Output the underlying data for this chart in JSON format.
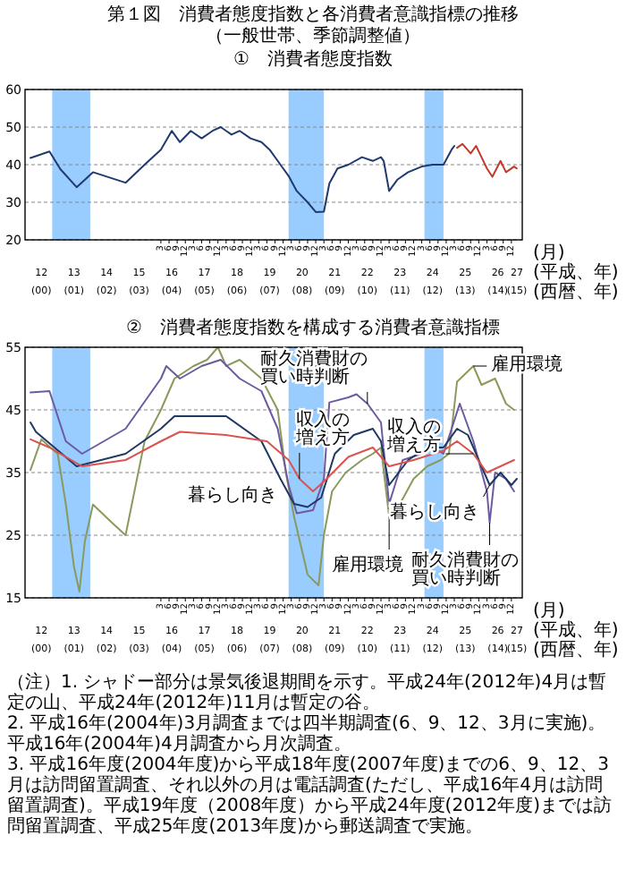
{
  "chart_data": [
    {
      "type": "line",
      "title": "第１図　消費者態度指数と各消費者意識指標の推移（一般世帯、季節調整値）",
      "subtitle": "①　消費者態度指数",
      "xlabel": "(月)",
      "x2label": "(平成、年)\n(西暦、年)",
      "xlim": [
        "2000-01",
        "2015-04"
      ],
      "ylim": [
        20,
        60
      ],
      "yticks": [
        20,
        30,
        40,
        50,
        60
      ],
      "grid": "y",
      "xticks": [
        {
          "value": "2004-03",
          "label": "3"
        },
        {
          "value": "2004-06",
          "label": "6"
        },
        {
          "value": "2004-09",
          "label": "9"
        },
        {
          "value": "2004-12",
          "label": "12"
        },
        {
          "value": "2005-03",
          "label": "3"
        },
        {
          "value": "2005-06",
          "label": "6"
        },
        {
          "value": "2005-09",
          "label": "9"
        },
        {
          "value": "2005-12",
          "label": "12"
        },
        {
          "value": "2006-03",
          "label": "3"
        },
        {
          "value": "2006-06",
          "label": "6"
        },
        {
          "value": "2006-09",
          "label": "9"
        },
        {
          "value": "2006-12",
          "label": "12"
        },
        {
          "value": "2007-03",
          "label": "3"
        },
        {
          "value": "2007-06",
          "label": "6"
        },
        {
          "value": "2007-09",
          "label": "9"
        },
        {
          "value": "2007-12",
          "label": "12"
        },
        {
          "value": "2008-03",
          "label": "3"
        },
        {
          "value": "2008-06",
          "label": "6"
        },
        {
          "value": "2008-09",
          "label": "9"
        },
        {
          "value": "2008-12",
          "label": "12"
        },
        {
          "value": "2009-03",
          "label": "3"
        },
        {
          "value": "2009-06",
          "label": "6"
        },
        {
          "value": "2009-09",
          "label": "9"
        },
        {
          "value": "2009-12",
          "label": "12"
        },
        {
          "value": "2010-03",
          "label": "3"
        },
        {
          "value": "2010-06",
          "label": "6"
        },
        {
          "value": "2010-09",
          "label": "9"
        },
        {
          "value": "2010-12",
          "label": "12"
        },
        {
          "value": "2011-03",
          "label": "3"
        },
        {
          "value": "2011-06",
          "label": "6"
        },
        {
          "value": "2011-09",
          "label": "9"
        },
        {
          "value": "2011-12",
          "label": "12"
        },
        {
          "value": "2012-03",
          "label": "3"
        },
        {
          "value": "2012-06",
          "label": "6"
        },
        {
          "value": "2012-09",
          "label": "9"
        },
        {
          "value": "2012-12",
          "label": "12"
        },
        {
          "value": "2013-03",
          "label": "3"
        },
        {
          "value": "2013-06",
          "label": "6"
        },
        {
          "value": "2013-09",
          "label": "9"
        },
        {
          "value": "2013-12",
          "label": "12"
        },
        {
          "value": "2014-03",
          "label": "3"
        },
        {
          "value": "2014-06",
          "label": "6"
        },
        {
          "value": "2014-09",
          "label": "9"
        },
        {
          "value": "2014-12",
          "label": "12"
        }
      ],
      "x2lim": [
        "2000-01",
        "2015-04"
      ],
      "x2ticks": [
        {
          "value": "2000-07",
          "label": "12\n(00)"
        },
        {
          "value": "2001-07",
          "label": "13\n(01)"
        },
        {
          "value": "2002-07",
          "label": "14\n(02)"
        },
        {
          "value": "2003-07",
          "label": "15\n(03)"
        },
        {
          "value": "2004-07",
          "label": "16\n(04)"
        },
        {
          "value": "2005-07",
          "label": "17\n(05)"
        },
        {
          "value": "2006-07",
          "label": "18\n(06)"
        },
        {
          "value": "2007-07",
          "label": "19\n(07)"
        },
        {
          "value": "2008-07",
          "label": "20\n(08)"
        },
        {
          "value": "2009-07",
          "label": "21\n(09)"
        },
        {
          "value": "2010-07",
          "label": "22\n(10)"
        },
        {
          "value": "2011-07",
          "label": "23\n(11)"
        },
        {
          "value": "2012-07",
          "label": "24\n(12)"
        },
        {
          "value": "2013-07",
          "label": "25\n(13)"
        },
        {
          "value": "2014-07",
          "label": "26\n(14)"
        },
        {
          "value": "2015-02",
          "label": "27\n(15)"
        }
      ],
      "bands": [
        {
          "axis": "x",
          "from": "2000-11",
          "to": "2002-01",
          "color": "#99ccff"
        },
        {
          "axis": "x",
          "from": "2008-02",
          "to": "2009-03",
          "color": "#99ccff"
        },
        {
          "axis": "x",
          "from": "2012-04",
          "to": "2012-11",
          "color": "#99ccff"
        }
      ],
      "series": [
        {
          "color": "#1f3a6e",
          "x": [
            "2000-03",
            "2000-10",
            "2001-02",
            "2001-08",
            "2002-02",
            "2003-02",
            "2003-09",
            "2004-03",
            "2004-07",
            "2004-10",
            "2005-02",
            "2005-06",
            "2005-10",
            "2006-01",
            "2006-05",
            "2006-08",
            "2006-12",
            "2007-04",
            "2007-07",
            "2007-11",
            "2008-02",
            "2008-05",
            "2008-09",
            "2008-12",
            "2009-03",
            "2009-05",
            "2009-08",
            "2009-12",
            "2010-05",
            "2010-09",
            "2010-12",
            "2011-01",
            "2011-03",
            "2011-06",
            "2011-10",
            "2012-03",
            "2012-07",
            "2012-11",
            "2013-02",
            "2013-03"
          ],
          "values": [
            41.8,
            43.5,
            38.8,
            34,
            38,
            35.2,
            40,
            44,
            49,
            46,
            49,
            47,
            49,
            50,
            48,
            49,
            47,
            46,
            44,
            40,
            37,
            33,
            30,
            27.4,
            27.5,
            35,
            39,
            40,
            42,
            41,
            42,
            41,
            33,
            36,
            38,
            39.5,
            40,
            40,
            44,
            45
          ]
        },
        {
          "color": "#c0392b",
          "x": [
            "2013-04",
            "2013-06",
            "2013-09",
            "2013-11",
            "2014-01",
            "2014-03",
            "2014-05",
            "2014-08",
            "2014-10",
            "2015-01",
            "2015-02"
          ],
          "values": [
            44.5,
            45.5,
            43,
            45,
            42,
            39,
            36.8,
            41,
            38,
            39.5,
            39
          ]
        }
      ]
    },
    {
      "type": "line",
      "title": "②　消費者態度指数を構成する消費者意識指標",
      "xlabel": "(月)",
      "x2label": "(平成、年)\n(西暦、年)",
      "xlim": [
        "2000-01",
        "2015-04"
      ],
      "ylim": [
        15,
        55
      ],
      "yticks": [
        15,
        25,
        35,
        45,
        55
      ],
      "grid": "y",
      "xticks": [
        {
          "value": "2004-03",
          "label": "3"
        },
        {
          "value": "2004-06",
          "label": "6"
        },
        {
          "value": "2004-09",
          "label": "9"
        },
        {
          "value": "2004-12",
          "label": "12"
        },
        {
          "value": "2005-03",
          "label": "3"
        },
        {
          "value": "2005-06",
          "label": "6"
        },
        {
          "value": "2005-09",
          "label": "9"
        },
        {
          "value": "2005-12",
          "label": "12"
        },
        {
          "value": "2006-03",
          "label": "3"
        },
        {
          "value": "2006-06",
          "label": "6"
        },
        {
          "value": "2006-09",
          "label": "9"
        },
        {
          "value": "2006-12",
          "label": "12"
        },
        {
          "value": "2007-03",
          "label": "3"
        },
        {
          "value": "2007-06",
          "label": "6"
        },
        {
          "value": "2007-09",
          "label": "9"
        },
        {
          "value": "2007-12",
          "label": "12"
        },
        {
          "value": "2008-03",
          "label": "3"
        },
        {
          "value": "2008-06",
          "label": "6"
        },
        {
          "value": "2008-09",
          "label": "9"
        },
        {
          "value": "2008-12",
          "label": "12"
        },
        {
          "value": "2009-03",
          "label": "3"
        },
        {
          "value": "2009-06",
          "label": "6"
        },
        {
          "value": "2009-09",
          "label": "9"
        },
        {
          "value": "2009-12",
          "label": "12"
        },
        {
          "value": "2010-03",
          "label": "3"
        },
        {
          "value": "2010-06",
          "label": "6"
        },
        {
          "value": "2010-09",
          "label": "9"
        },
        {
          "value": "2010-12",
          "label": "12"
        },
        {
          "value": "2011-03",
          "label": "3"
        },
        {
          "value": "2011-06",
          "label": "6"
        },
        {
          "value": "2011-09",
          "label": "9"
        },
        {
          "value": "2011-12",
          "label": "12"
        },
        {
          "value": "2012-03",
          "label": "3"
        },
        {
          "value": "2012-06",
          "label": "6"
        },
        {
          "value": "2012-09",
          "label": "9"
        },
        {
          "value": "2012-12",
          "label": "12"
        },
        {
          "value": "2013-03",
          "label": "3"
        },
        {
          "value": "2013-06",
          "label": "6"
        },
        {
          "value": "2013-09",
          "label": "9"
        },
        {
          "value": "2013-12",
          "label": "12"
        },
        {
          "value": "2014-03",
          "label": "3"
        },
        {
          "value": "2014-06",
          "label": "6"
        },
        {
          "value": "2014-09",
          "label": "9"
        },
        {
          "value": "2014-12",
          "label": "12"
        }
      ],
      "x2lim": [
        "2000-01",
        "2015-04"
      ],
      "x2ticks": [
        {
          "value": "2000-07",
          "label": "12\n(00)"
        },
        {
          "value": "2001-07",
          "label": "13\n(01)"
        },
        {
          "value": "2002-07",
          "label": "14\n(02)"
        },
        {
          "value": "2003-07",
          "label": "15\n(03)"
        },
        {
          "value": "2004-07",
          "label": "16\n(04)"
        },
        {
          "value": "2005-07",
          "label": "17\n(05)"
        },
        {
          "value": "2006-07",
          "label": "18\n(06)"
        },
        {
          "value": "2007-07",
          "label": "19\n(07)"
        },
        {
          "value": "2008-07",
          "label": "20\n(08)"
        },
        {
          "value": "2009-07",
          "label": "21\n(09)"
        },
        {
          "value": "2010-07",
          "label": "22\n(10)"
        },
        {
          "value": "2011-07",
          "label": "23\n(11)"
        },
        {
          "value": "2012-07",
          "label": "24\n(12)"
        },
        {
          "value": "2013-07",
          "label": "25\n(13)"
        },
        {
          "value": "2014-07",
          "label": "26\n(14)"
        },
        {
          "value": "2015-02",
          "label": "27\n(15)"
        }
      ],
      "bands": [
        {
          "axis": "x",
          "from": "2000-11",
          "to": "2002-01",
          "color": "#99ccff"
        },
        {
          "axis": "x",
          "from": "2008-02",
          "to": "2009-03",
          "color": "#99ccff"
        },
        {
          "axis": "x",
          "from": "2012-04",
          "to": "2012-11",
          "color": "#99ccff"
        }
      ],
      "series": [
        {
          "color": "#8a9a5b",
          "x": [
            "2000-03",
            "2000-07",
            "2001-01",
            "2001-04",
            "2001-07",
            "2001-09",
            "2001-11",
            "2002-02",
            "2002-09",
            "2003-02",
            "2003-09",
            "2004-03",
            "2004-08",
            "2005-03",
            "2005-08",
            "2005-12",
            "2006-03",
            "2006-08",
            "2007-04",
            "2007-10",
            "2008-01",
            "2008-04",
            "2008-09",
            "2009-01",
            "2009-03",
            "2009-06",
            "2009-11",
            "2010-05",
            "2010-09",
            "2010-12",
            "2011-03",
            "2011-07",
            "2011-12",
            "2012-05",
            "2012-10",
            "2013-01",
            "2013-04",
            "2013-10",
            "2014-01",
            "2014-06",
            "2014-10",
            "2015-01"
          ],
          "values": [
            35.4,
            40.3,
            38,
            30,
            20,
            16,
            24,
            29.9,
            27,
            25,
            40,
            45,
            50,
            52,
            53,
            55,
            52,
            53,
            50,
            45,
            35,
            28,
            18.7,
            17,
            25,
            32,
            35,
            37,
            38,
            39,
            28,
            30,
            34,
            36,
            37,
            38,
            49.5,
            52,
            49,
            50,
            46,
            45
          ]
        },
        {
          "color": "#6e5a9e",
          "x": [
            "2000-03",
            "2000-10",
            "2001-04",
            "2001-10",
            "2003-02",
            "2004-03",
            "2004-05",
            "2004-10",
            "2005-06",
            "2006-01",
            "2006-08",
            "2007-04",
            "2007-10",
            "2008-02",
            "2008-05",
            "2008-11",
            "2009-03",
            "2009-05",
            "2009-12",
            "2010-03",
            "2010-07",
            "2010-12",
            "2011-03",
            "2011-08",
            "2012-03",
            "2012-07",
            "2012-11",
            "2013-02",
            "2013-05",
            "2013-10",
            "2014-03",
            "2014-04",
            "2014-06",
            "2014-10",
            "2015-01"
          ],
          "values": [
            47.8,
            48,
            40,
            38,
            42,
            50,
            52,
            50,
            52,
            53,
            50,
            48,
            42,
            33,
            28.5,
            29,
            34,
            46.2,
            47,
            47.5,
            46,
            43,
            30,
            37,
            38,
            39,
            38,
            42,
            46,
            40,
            32,
            27,
            35,
            34,
            32
          ]
        },
        {
          "color": "#1f3864",
          "x": [
            "2000-03",
            "2000-05",
            "2001-08",
            "2003-02",
            "2004-03",
            "2004-08",
            "2006-03",
            "2007-04",
            "2007-11",
            "2008-04",
            "2008-09",
            "2009-02",
            "2009-07",
            "2010-02",
            "2010-09",
            "2010-12",
            "2011-03",
            "2011-10",
            "2012-05",
            "2012-11",
            "2013-04",
            "2013-08",
            "2014-01",
            "2014-04",
            "2014-08",
            "2014-12",
            "2015-02"
          ],
          "values": [
            43,
            41.5,
            36,
            38,
            42,
            44,
            44,
            40,
            34,
            30,
            29.5,
            31,
            38,
            41,
            42,
            40,
            33,
            37,
            39,
            39,
            42,
            41,
            36,
            33,
            35,
            33,
            34
          ]
        },
        {
          "color": "#d9534f",
          "x": [
            "2000-03",
            "2000-10",
            "2001-10",
            "2003-02",
            "2004-03",
            "2004-10",
            "2006-03",
            "2007-06",
            "2008-02",
            "2008-06",
            "2008-11",
            "2009-04",
            "2009-12",
            "2010-09",
            "2011-03",
            "2011-12",
            "2012-11",
            "2013-04",
            "2013-10",
            "2014-03",
            "2014-08",
            "2015-01"
          ],
          "values": [
            40.3,
            39,
            36,
            37,
            40,
            41.5,
            41,
            40,
            37,
            34,
            32,
            34,
            37.5,
            39,
            36,
            37,
            38.5,
            40,
            38,
            35,
            36,
            37
          ]
        }
      ],
      "annotations": [
        {
          "text": "雇用環境",
          "x": "2013-10",
          "y": 52
        },
        {
          "text": "耐久消費財の買い時判断",
          "x": "2010-07",
          "y": 46
        },
        {
          "text": "収入の増え方",
          "x": "2008-06",
          "y": 34
        },
        {
          "text": "暮らし向き",
          "x": "2007-11",
          "y": 34
        },
        {
          "text": "雇用環境",
          "x": "2011-03",
          "y": 28
        },
        {
          "text": "収入の増え方",
          "x": "2013-10",
          "y": 38
        },
        {
          "text": "暮らし向き",
          "x": "2014-04",
          "y": 33
        },
        {
          "text": "耐久消費財の買い時判断",
          "x": "2014-04",
          "y": 27
        },
        "（注）1. シャドー部分は景気後退期間を示す。平成24年(2012年)4月は暫定の山、平成24年(2012年)11月は暫定の谷。",
        "2. 平成16年(2004年)3月調査までは四半期調査(6、9、12、3月に実施)。平成16年(2004年)4月調査から月次調査。",
        "3. 平成16年度(2004年度)から平成18年度(2007年度)までの6、9、12、3月は訪問留置調査、それ以外の月は電話調査(ただし、平成16年4月は訪問留置調査)。平成19年度（2008年度）から平成24年度(2012年度)までは訪問留置調査、平成25年度(2013年度)から郵送調査で実施。"
      ]
    }
  ]
}
